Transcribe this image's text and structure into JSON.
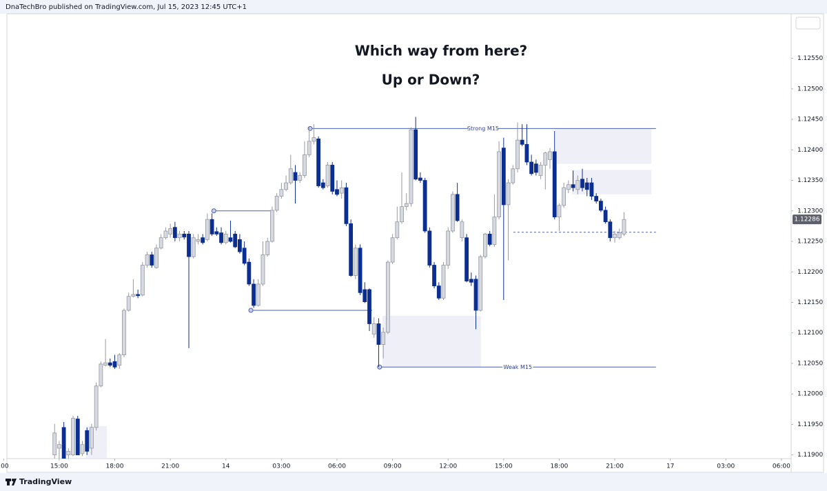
{
  "header": {
    "text": "DnaTechBro published on TradingView.com, Jul 15, 2023 12:45 UTC+1",
    "brand": "TradingView"
  },
  "chart_data": {
    "type": "candlestick",
    "title": "Which way from here?",
    "subtitle": "Up or Down?",
    "up_color": "#d6d9e0",
    "up_border": "#9598a1",
    "down_color": "#0b2e8f",
    "line_color": "#4a5fb0",
    "zone_color": "#e9ebf4",
    "categories": [
      null,
      null,
      null,
      null,
      null,
      null,
      null,
      null,
      null,
      null,
      null,
      null,
      null,
      null,
      null,
      null,
      null,
      null,
      null,
      null,
      null,
      null,
      null,
      null,
      null,
      null,
      null,
      null,
      null,
      null,
      null,
      null,
      null,
      null,
      null,
      null,
      null,
      null,
      null,
      null,
      null,
      null,
      null,
      null,
      null,
      null,
      null,
      null,
      null,
      null,
      null,
      null,
      null,
      null,
      null,
      null,
      null,
      null,
      null,
      null,
      null,
      null,
      null,
      null,
      null,
      null,
      null,
      null,
      null,
      null,
      null,
      null,
      null,
      null,
      null,
      null,
      null,
      null,
      null,
      null,
      null,
      null,
      null,
      null,
      null,
      null,
      null,
      null,
      null,
      null,
      null,
      null,
      null,
      null,
      null,
      null,
      null,
      null,
      null,
      null,
      null,
      null,
      null,
      null,
      null,
      null,
      null,
      null,
      null,
      null,
      null,
      null,
      null,
      null,
      null,
      null,
      null,
      null,
      null,
      null,
      null,
      null,
      null,
      null
    ],
    "ohlc": [
      [
        1.119,
        1.11951,
        1.11894,
        1.11936
      ],
      [
        1.11911,
        1.11923,
        1.11891,
        1.11917
      ],
      [
        1.11945,
        1.11954,
        1.11891,
        1.11894
      ],
      [
        1.119,
        1.11911,
        1.11891,
        1.11906
      ],
      [
        1.119,
        1.11964,
        1.11898,
        1.1196
      ],
      [
        1.11959,
        1.11964,
        1.119,
        1.119
      ],
      [
        1.11902,
        1.11923,
        1.11898,
        1.11917
      ],
      [
        1.1194,
        1.11945,
        1.119,
        1.11906
      ],
      [
        1.11911,
        1.11951,
        1.119,
        1.11945
      ],
      [
        1.11945,
        1.12019,
        1.1194,
        1.12013
      ],
      [
        1.12013,
        1.12053,
        1.12011,
        1.12049
      ],
      [
        1.12047,
        1.1209,
        1.12045,
        1.12051
      ],
      [
        1.12051,
        1.12058,
        1.12044,
        1.12047
      ],
      [
        1.12053,
        1.12064,
        1.12041,
        1.12044
      ],
      [
        1.12047,
        1.12067,
        1.12041,
        1.12064
      ],
      [
        1.12064,
        1.1214,
        1.1206,
        1.12137
      ],
      [
        1.12137,
        1.12166,
        1.12135,
        1.1216
      ],
      [
        1.1216,
        1.12188,
        1.12158,
        1.12163
      ],
      [
        1.12163,
        1.12171,
        1.12157,
        1.12161
      ],
      [
        1.12162,
        1.12216,
        1.1216,
        1.12211
      ],
      [
        1.12211,
        1.12233,
        1.12207,
        1.12228
      ],
      [
        1.12228,
        1.12233,
        1.12207,
        1.12211
      ],
      [
        1.12207,
        1.12245,
        1.12205,
        1.12239
      ],
      [
        1.12239,
        1.12262,
        1.12237,
        1.12256
      ],
      [
        1.12256,
        1.12273,
        1.12253,
        1.12267
      ],
      [
        1.12262,
        1.12279,
        1.12256,
        1.12271
      ],
      [
        1.12273,
        1.12282,
        1.1225,
        1.12256
      ],
      [
        1.12256,
        1.12267,
        1.1225,
        1.12262
      ],
      [
        1.12262,
        1.12267,
        1.12253,
        1.12257
      ],
      [
        1.12262,
        1.12267,
        1.12075,
        1.12225
      ],
      [
        1.12225,
        1.12262,
        1.12222,
        1.12256
      ],
      [
        1.1225,
        1.12262,
        1.12245,
        1.12253
      ],
      [
        1.12256,
        1.12262,
        1.12245,
        1.12248
      ],
      [
        1.12253,
        1.12296,
        1.1225,
        1.12286
      ],
      [
        1.12286,
        1.12296,
        1.12259,
        1.12262
      ],
      [
        1.12266,
        1.12273,
        1.12259,
        1.12262
      ],
      [
        1.12264,
        1.12273,
        1.12245,
        1.12248
      ],
      [
        1.12248,
        1.12267,
        1.12245,
        1.12262
      ],
      [
        1.12256,
        1.12284,
        1.12248,
        1.1225
      ],
      [
        1.12262,
        1.12267,
        1.12239,
        1.12241
      ],
      [
        1.12253,
        1.12262,
        1.1223,
        1.12233
      ],
      [
        1.12239,
        1.1225,
        1.12211,
        1.12214
      ],
      [
        1.12216,
        1.12222,
        1.12177,
        1.1218
      ],
      [
        1.1218,
        1.12188,
        1.12141,
        1.12145
      ],
      [
        1.12145,
        1.12188,
        1.12143,
        1.1218
      ],
      [
        1.1218,
        1.1225,
        1.12177,
        1.12228
      ],
      [
        1.12228,
        1.12256,
        1.12225,
        1.1225
      ],
      [
        1.1225,
        1.12307,
        1.12248,
        1.12301
      ],
      [
        1.12301,
        1.12329,
        1.12298,
        1.12324
      ],
      [
        1.12324,
        1.12346,
        1.1232,
        1.12335
      ],
      [
        1.12335,
        1.12358,
        1.12332,
        1.12346
      ],
      [
        1.12346,
        1.12392,
        1.12343,
        1.12369
      ],
      [
        1.12363,
        1.12375,
        1.12312,
        1.1235
      ],
      [
        1.1235,
        1.12363,
        1.12346,
        1.12358
      ],
      [
        1.12358,
        1.12414,
        1.12354,
        1.12392
      ],
      [
        1.12392,
        1.12437,
        1.12388,
        1.12414
      ],
      [
        1.12414,
        1.12442,
        1.12409,
        1.1242
      ],
      [
        1.12418,
        1.12422,
        1.12338,
        1.12341
      ],
      [
        1.12346,
        1.12352,
        1.12335,
        1.12338
      ],
      [
        1.12341,
        1.1238,
        1.12338,
        1.12375
      ],
      [
        1.12375,
        1.1238,
        1.12327,
        1.12332
      ],
      [
        1.12335,
        1.1235,
        1.12324,
        1.12327
      ],
      [
        1.12329,
        1.1235,
        1.1232,
        1.12338
      ],
      [
        1.12338,
        1.12346,
        1.12275,
        1.12279
      ],
      [
        1.12279,
        1.12286,
        1.12192,
        1.12194
      ],
      [
        1.12194,
        1.12245,
        1.12188,
        1.12239
      ],
      [
        1.12239,
        1.12245,
        1.12162,
        1.12166
      ],
      [
        1.12171,
        1.12183,
        1.12149,
        1.12151
      ],
      [
        1.12171,
        1.12173,
        1.12103,
        1.12115
      ],
      [
        1.12098,
        1.12126,
        1.12092,
        1.12115
      ],
      [
        1.12115,
        1.12124,
        1.12044,
        1.12081
      ],
      [
        1.12081,
        1.12109,
        1.12058,
        1.12101
      ],
      [
        1.12101,
        1.12219,
        1.12098,
        1.12216
      ],
      [
        1.12216,
        1.12262,
        1.12213,
        1.12256
      ],
      [
        1.12256,
        1.12307,
        1.12253,
        1.12282
      ],
      [
        1.12282,
        1.12363,
        1.12279,
        1.12307
      ],
      [
        1.12307,
        1.12329,
        1.12301,
        1.12312
      ],
      [
        1.12312,
        1.12437,
        1.12307,
        1.12433
      ],
      [
        1.12433,
        1.12454,
        1.1235,
        1.12352
      ],
      [
        1.12354,
        1.12363,
        1.12346,
        1.1235
      ],
      [
        1.1235,
        1.12354,
        1.12264,
        1.12267
      ],
      [
        1.12267,
        1.12273,
        1.12207,
        1.12211
      ],
      [
        1.12211,
        1.12216,
        1.12173,
        1.12177
      ],
      [
        1.12177,
        1.12183,
        1.12154,
        1.12157
      ],
      [
        1.12157,
        1.12216,
        1.12154,
        1.12211
      ],
      [
        1.12211,
        1.12273,
        1.12205,
        1.12267
      ],
      [
        1.12267,
        1.12332,
        1.12264,
        1.12327
      ],
      [
        1.12327,
        1.12346,
        1.12282,
        1.12284
      ],
      [
        1.12256,
        1.12286,
        1.1225,
        1.12282
      ],
      [
        1.12256,
        1.12262,
        1.12183,
        1.12185
      ],
      [
        1.12188,
        1.12199,
        1.12177,
        1.12183
      ],
      [
        1.12188,
        1.12194,
        1.12106,
        1.12137
      ],
      [
        1.12137,
        1.12228,
        1.12135,
        1.12225
      ],
      [
        1.12225,
        1.12264,
        1.12222,
        1.12262
      ],
      [
        1.12262,
        1.12267,
        1.12242,
        1.12245
      ],
      [
        1.12245,
        1.12327,
        1.12241,
        1.1229
      ],
      [
        1.1229,
        1.12414,
        1.12286,
        1.12397
      ],
      [
        1.12403,
        1.1242,
        1.12154,
        1.1231
      ],
      [
        1.1231,
        1.12352,
        1.12219,
        1.12346
      ],
      [
        1.12346,
        1.12375,
        1.12343,
        1.12369
      ],
      [
        1.12369,
        1.12445,
        1.12363,
        1.12416
      ],
      [
        1.12416,
        1.12442,
        1.12406,
        1.12409
      ],
      [
        1.12409,
        1.12442,
        1.12375,
        1.1238
      ],
      [
        1.1238,
        1.12392,
        1.12358,
        1.12361
      ],
      [
        1.12377,
        1.12384,
        1.12358,
        1.12363
      ],
      [
        1.12358,
        1.1238,
        1.12352,
        1.12375
      ],
      [
        1.12375,
        1.12397,
        1.12335,
        1.12395
      ],
      [
        1.12384,
        1.12403,
        1.12369,
        1.12397
      ],
      [
        1.12397,
        1.12431,
        1.12286,
        1.1229
      ],
      [
        1.1229,
        1.12312,
        1.12267,
        1.12309
      ],
      [
        1.12309,
        1.12346,
        1.12305,
        1.12338
      ],
      [
        1.12335,
        1.1235,
        1.12329,
        1.12343
      ],
      [
        1.12343,
        1.12366,
        1.12332,
        1.12338
      ],
      [
        1.12335,
        1.12358,
        1.12327,
        1.1235
      ],
      [
        1.12352,
        1.12369,
        1.12332,
        1.12338
      ],
      [
        1.12346,
        1.12354,
        1.12324,
        1.12335
      ],
      [
        1.12346,
        1.12354,
        1.12318,
        1.12324
      ],
      [
        1.12324,
        1.12329,
        1.12312,
        1.12316
      ],
      [
        1.12316,
        1.1232,
        1.12298,
        1.12301
      ],
      [
        1.12301,
        1.12307,
        1.12279,
        1.12282
      ],
      [
        1.12282,
        1.12286,
        1.1225,
        1.12256
      ],
      [
        1.12256,
        1.12267,
        1.12248,
        1.12262
      ],
      [
        1.12256,
        1.12271,
        1.12253,
        1.12264
      ],
      [
        1.12262,
        1.12298,
        1.12259,
        1.12286
      ]
    ],
    "xlim": [
      -10.3,
      159.1
    ],
    "xticks": [
      {
        "value": -11,
        "label": ":00"
      },
      {
        "value": 1,
        "label": "15:00"
      },
      {
        "value": 13,
        "label": "18:00"
      },
      {
        "value": 25,
        "label": "21:00"
      },
      {
        "value": 37,
        "label": "14"
      },
      {
        "value": 49,
        "label": "03:00"
      },
      {
        "value": 61,
        "label": "06:00"
      },
      {
        "value": 73,
        "label": "09:00"
      },
      {
        "value": 85,
        "label": "12:00"
      },
      {
        "value": 97,
        "label": "15:00"
      },
      {
        "value": 109,
        "label": "18:00"
      },
      {
        "value": 121,
        "label": "21:00"
      },
      {
        "value": 133,
        "label": "17"
      },
      {
        "value": 145,
        "label": "03:00"
      },
      {
        "value": 157,
        "label": "06:00"
      }
    ],
    "ylim": [
      1.11894,
      1.12623
    ],
    "yticks": [
      {
        "value": 1.119,
        "label": "1.11900"
      },
      {
        "value": 1.1195,
        "label": "1.11950"
      },
      {
        "value": 1.12,
        "label": "1.12000"
      },
      {
        "value": 1.1205,
        "label": "1.12050"
      },
      {
        "value": 1.121,
        "label": "1.12100"
      },
      {
        "value": 1.1215,
        "label": "1.12150"
      },
      {
        "value": 1.122,
        "label": "1.12200"
      },
      {
        "value": 1.1225,
        "label": "1.12250"
      },
      {
        "value": 1.123,
        "label": "1.12300"
      },
      {
        "value": 1.1235,
        "label": "1.12350"
      },
      {
        "value": 1.124,
        "label": "1.12400"
      },
      {
        "value": 1.1245,
        "label": "1.12450"
      },
      {
        "value": 1.125,
        "label": "1.12500"
      },
      {
        "value": 1.1255,
        "label": "1.12550"
      }
    ],
    "last_price": 1.12286,
    "lines": [
      {
        "label": "Strong M15",
        "y": 1.12435,
        "x": [
          55.2,
          129.9
        ]
      },
      {
        "label": "Weak M15",
        "y": 1.12044,
        "x": [
          70.2,
          129.9
        ]
      },
      {
        "y": 1.123,
        "x": [
          34.4,
          47
        ]
      },
      {
        "y": 1.12137,
        "x": [
          42.4,
          68.6
        ]
      },
      {
        "y": 1.12265,
        "x": [
          99.1,
          129.9
        ],
        "dashed": true
      }
    ],
    "zones": [
      {
        "y": [
          1.12377,
          1.12435
        ],
        "x": [
          108.2,
          128.9
        ]
      },
      {
        "y": [
          1.12327,
          1.12367
        ],
        "x": [
          111.8,
          128.9
        ]
      },
      {
        "y": [
          1.12044,
          1.12128
        ],
        "x": [
          70.8,
          92.1
        ]
      },
      {
        "y": [
          1.11894,
          1.11947
        ],
        "x": [
          6.8,
          11.3
        ]
      }
    ]
  }
}
